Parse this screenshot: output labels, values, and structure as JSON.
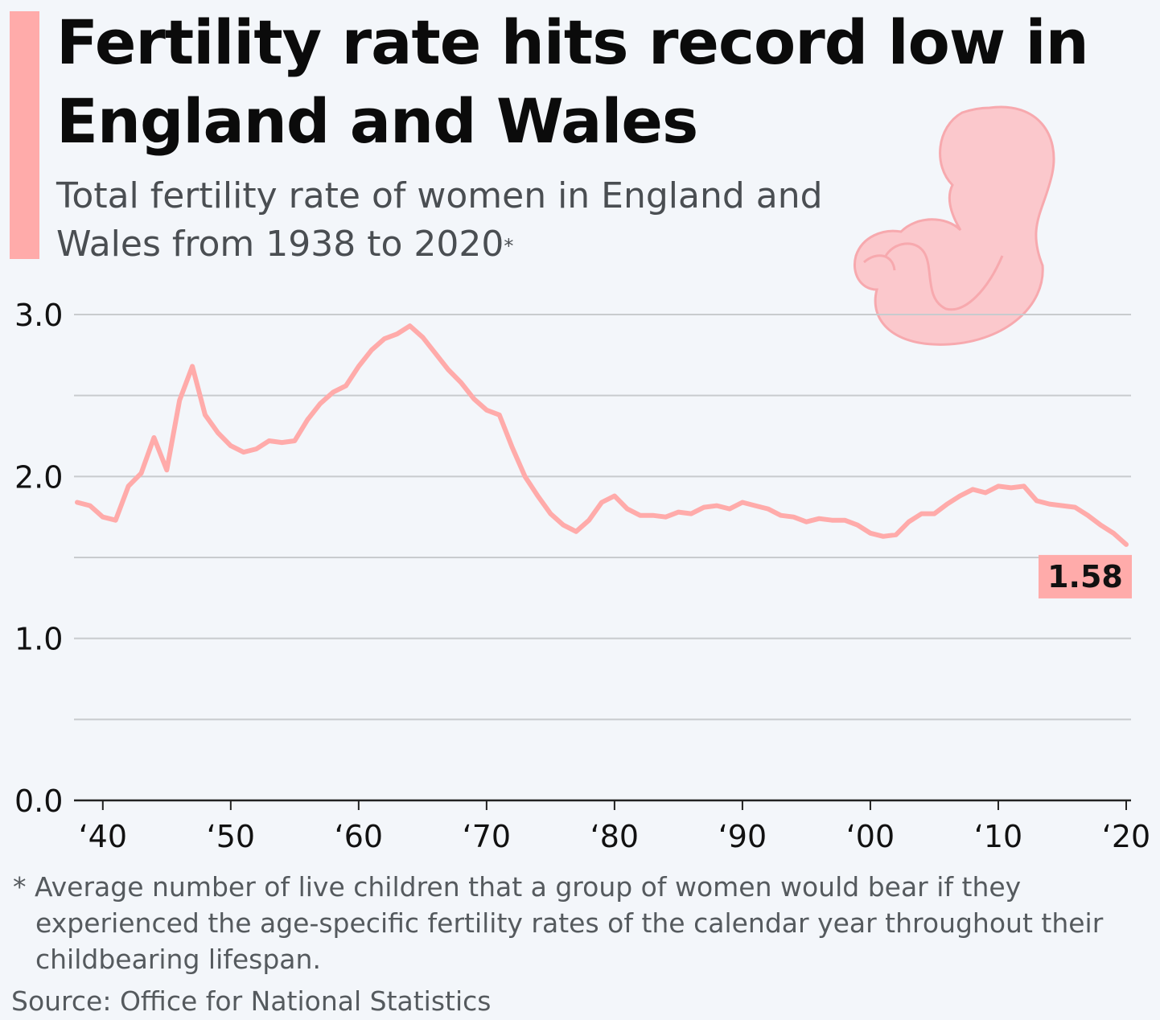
{
  "header": {
    "title": "Fertility rate hits record low in England and Wales",
    "subtitle": "Total fertility rate of women in England and Wales from 1938 to 2020",
    "subtitle_marker": "*"
  },
  "footer": {
    "footnote": "* Average number of live children that a group of women would bear if they experienced the age-specific fertility rates of the calendar year throughout their childbearing lifespan.",
    "source": "Source: Office for National Statistics"
  },
  "colors": {
    "accent": "#ffabaa",
    "line": "#ffabaa",
    "background": "#f3f6fa",
    "grid": "#c8cbce",
    "illustration": "#fbc8cc"
  },
  "icons": {
    "illustration": "fetus-icon"
  },
  "chart_data": {
    "type": "line",
    "title": "Fertility rate hits record low in England and Wales",
    "xlabel": "",
    "ylabel": "",
    "xlim": [
      1938,
      2020
    ],
    "ylim": [
      0,
      3
    ],
    "grid": true,
    "y_ticks": [
      {
        "value": 0,
        "label": "0.0"
      },
      {
        "value": 0.5,
        "label": ""
      },
      {
        "value": 1,
        "label": "1.0"
      },
      {
        "value": 1.5,
        "label": ""
      },
      {
        "value": 2,
        "label": "2.0"
      },
      {
        "value": 2.5,
        "label": ""
      },
      {
        "value": 3,
        "label": "3.0"
      }
    ],
    "x_ticks": [
      {
        "value": 1940,
        "label": "‘40"
      },
      {
        "value": 1950,
        "label": "‘50"
      },
      {
        "value": 1960,
        "label": "‘60"
      },
      {
        "value": 1970,
        "label": "‘70"
      },
      {
        "value": 1980,
        "label": "‘80"
      },
      {
        "value": 1990,
        "label": "‘90"
      },
      {
        "value": 2000,
        "label": "‘00"
      },
      {
        "value": 2010,
        "label": "‘10"
      },
      {
        "value": 2020,
        "label": "‘20"
      }
    ],
    "series": [
      {
        "name": "Total fertility rate",
        "x": [
          1938,
          1939,
          1940,
          1941,
          1942,
          1943,
          1944,
          1945,
          1946,
          1947,
          1948,
          1949,
          1950,
          1951,
          1952,
          1953,
          1954,
          1955,
          1956,
          1957,
          1958,
          1959,
          1960,
          1961,
          1962,
          1963,
          1964,
          1965,
          1966,
          1967,
          1968,
          1969,
          1970,
          1971,
          1972,
          1973,
          1974,
          1975,
          1976,
          1977,
          1978,
          1979,
          1980,
          1981,
          1982,
          1983,
          1984,
          1985,
          1986,
          1987,
          1988,
          1989,
          1990,
          1991,
          1992,
          1993,
          1994,
          1995,
          1996,
          1997,
          1998,
          1999,
          2000,
          2001,
          2002,
          2003,
          2004,
          2005,
          2006,
          2007,
          2008,
          2009,
          2010,
          2011,
          2012,
          2013,
          2014,
          2015,
          2016,
          2017,
          2018,
          2019,
          2020
        ],
        "values": [
          1.84,
          1.82,
          1.75,
          1.73,
          1.94,
          2.02,
          2.24,
          2.04,
          2.47,
          2.68,
          2.38,
          2.27,
          2.19,
          2.15,
          2.17,
          2.22,
          2.21,
          2.22,
          2.35,
          2.45,
          2.52,
          2.56,
          2.68,
          2.78,
          2.85,
          2.88,
          2.93,
          2.86,
          2.76,
          2.66,
          2.58,
          2.48,
          2.41,
          2.38,
          2.18,
          2.0,
          1.88,
          1.77,
          1.7,
          1.66,
          1.73,
          1.84,
          1.88,
          1.8,
          1.76,
          1.76,
          1.75,
          1.78,
          1.77,
          1.81,
          1.82,
          1.8,
          1.84,
          1.82,
          1.8,
          1.76,
          1.75,
          1.72,
          1.74,
          1.73,
          1.73,
          1.7,
          1.65,
          1.63,
          1.64,
          1.72,
          1.77,
          1.77,
          1.83,
          1.88,
          1.92,
          1.9,
          1.94,
          1.93,
          1.94,
          1.85,
          1.83,
          1.82,
          1.81,
          1.76,
          1.7,
          1.65,
          1.58
        ]
      }
    ],
    "annotations": [
      {
        "x": 2020,
        "y": 1.58,
        "text": "1.58"
      }
    ]
  }
}
